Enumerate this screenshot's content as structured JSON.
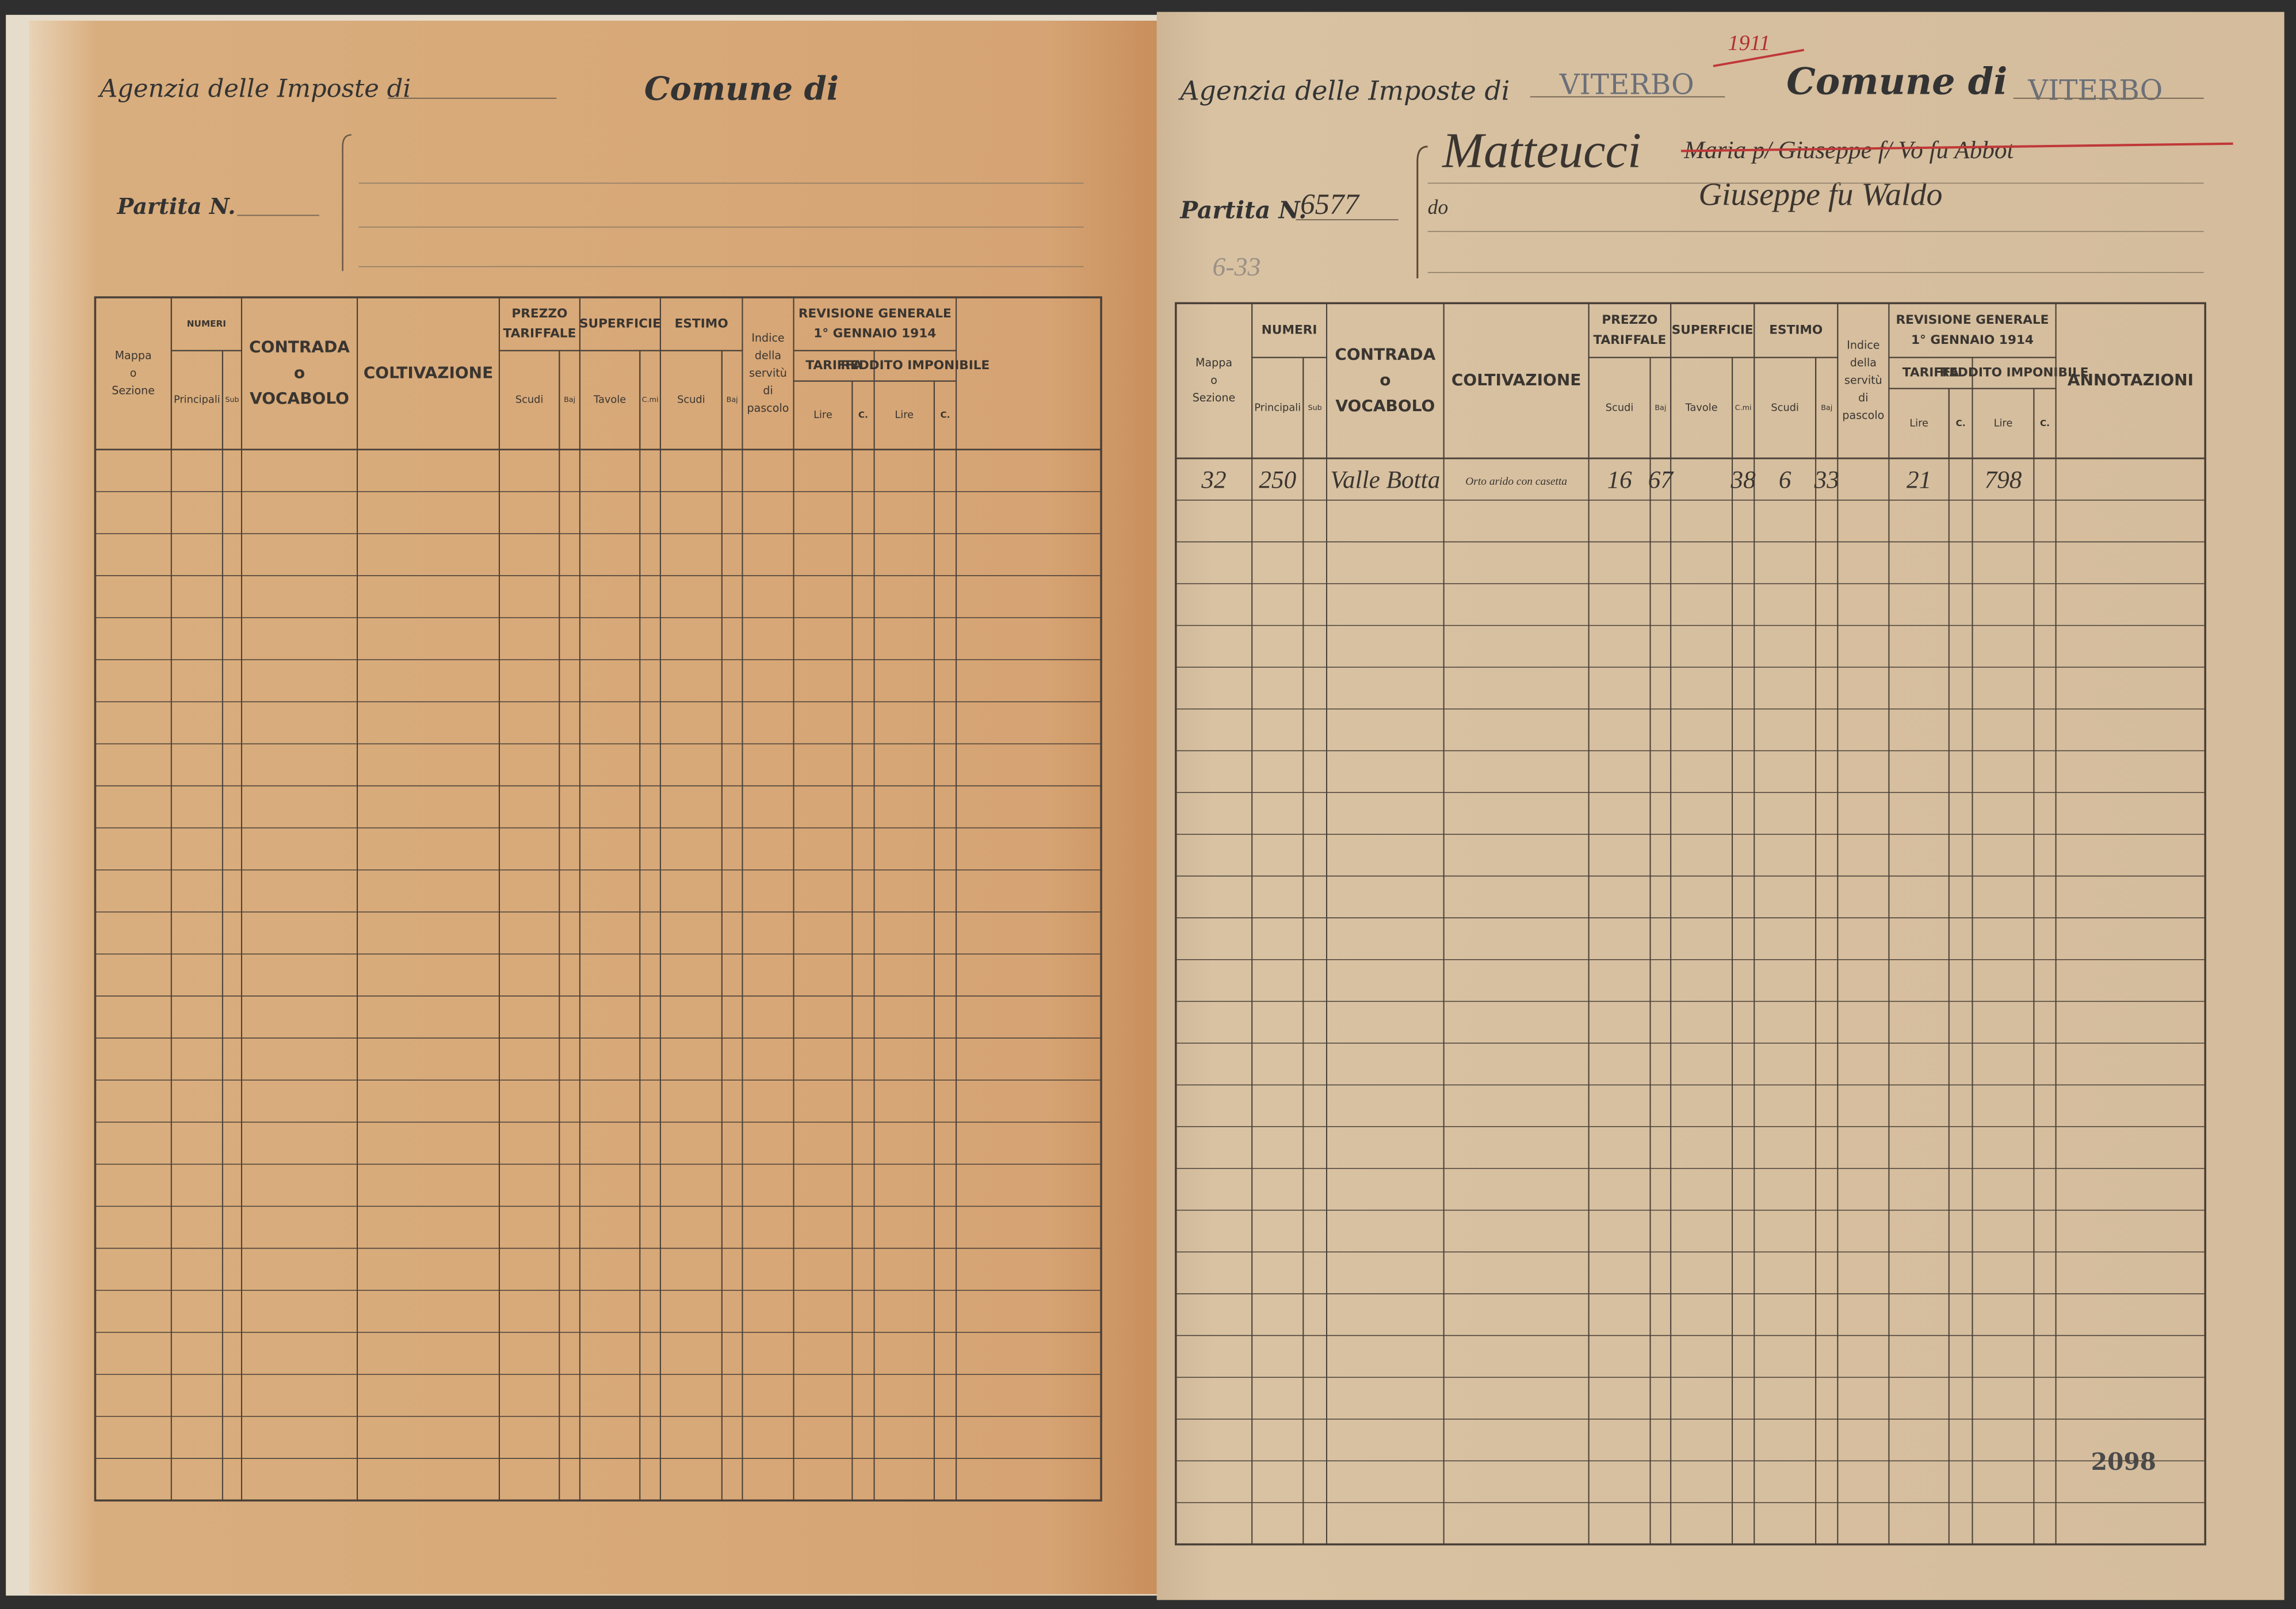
{
  "left_page": {
    "header": {
      "agency_label": "Agenzia delle Imposte di",
      "comune_label": "Comune di",
      "partita_label": "Partita N."
    },
    "table": {
      "headers": [
        [
          "Mappa",
          "o",
          "Sezione"
        ],
        [
          "NUMERI"
        ],
        [
          "Principali"
        ],
        [
          "Sub"
        ],
        [
          "CONTRADA",
          "o",
          "VOCABOLO"
        ],
        [
          "COLTIVAZIONE"
        ],
        [
          "PREZZO",
          "TARIFFALE"
        ],
        [
          "Scudi"
        ],
        [
          "Baj"
        ],
        [
          "SUPERFICIE"
        ],
        [
          "Tavole"
        ],
        [
          "C.mi"
        ],
        [
          "ESTIMO"
        ],
        [
          "Scudi"
        ],
        [
          "Baj"
        ],
        [
          "Indice",
          "della",
          "servitù",
          "di",
          "pascolo"
        ],
        [
          "REVISIONE GENERALE",
          "1° GENNAIO 1914"
        ],
        [
          "TARIFFA"
        ],
        [
          "REDDITO IMPONIBILE"
        ],
        [
          "Lire"
        ],
        [
          "C."
        ],
        [
          "Lire"
        ],
        [
          "C."
        ]
      ],
      "rows": []
    }
  },
  "right_page": {
    "header": {
      "agency_label": "Agenzia delle Imposte di",
      "agency_value": "VITERBO",
      "struck_year": "1911",
      "comune_label": "Comune di",
      "comune_value": "VITERBO",
      "partita_label": "Partita N.",
      "partita_value": "6577",
      "owner_surname": "Matteucci",
      "owner_struck": "Maria p/ Giuseppe f/ Vo fu Abbot",
      "owner_prefix": "do",
      "owner_line2": "Giuseppe fu Waldo",
      "margin_note": "6-33"
    },
    "table": {
      "headers": [
        [
          "Mappa",
          "o",
          "Sezione"
        ],
        [
          "NUMERI"
        ],
        [
          "Principali"
        ],
        [
          "Sub"
        ],
        [
          "CONTRADA",
          "o",
          "VOCABOLO"
        ],
        [
          "COLTIVAZIONE"
        ],
        [
          "PREZZO",
          "TARIFFALE"
        ],
        [
          "Scudi"
        ],
        [
          "Baj"
        ],
        [
          "SUPERFICIE"
        ],
        [
          "Tavole"
        ],
        [
          "C.mi"
        ],
        [
          "ESTIMO"
        ],
        [
          "Scudi"
        ],
        [
          "Baj"
        ],
        [
          "Indice",
          "della",
          "servitù",
          "di",
          "pascolo"
        ],
        [
          "REVISIONE GENERALE",
          "1° GENNAIO 1914"
        ],
        [
          "TARIFFA"
        ],
        [
          "REDDITO IMPONIBILE"
        ],
        [
          "Lire"
        ],
        [
          "C."
        ],
        [
          "Lire"
        ],
        [
          "C."
        ],
        [
          "ANNOTAZIONI"
        ]
      ],
      "rows": [
        [
          "32",
          "250",
          null,
          "Valle Botta",
          "Orto arido con casetta",
          "16",
          "67",
          null,
          "38",
          "6",
          "33",
          null,
          "21",
          null,
          "798",
          null,
          null
        ]
      ]
    },
    "page_number": "2098"
  }
}
